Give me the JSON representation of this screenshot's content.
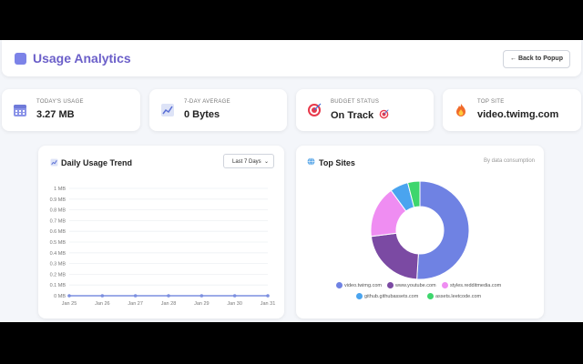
{
  "header": {
    "title": "Usage Analytics",
    "back_label": "← Back to Popup"
  },
  "stats": [
    {
      "label": "TODAY'S USAGE",
      "value": "3.27 MB",
      "icon": "calendar-icon"
    },
    {
      "label": "7-DAY AVERAGE",
      "value": "0 Bytes",
      "icon": "chart-trend-icon"
    },
    {
      "label": "BUDGET STATUS",
      "value": "On Track",
      "icon": "target-icon"
    },
    {
      "label": "TOP SITE",
      "value": "video.twimg.com",
      "icon": "fire-icon"
    }
  ],
  "trend": {
    "title": "Daily Usage Trend",
    "range_selected": "Last 7 Days",
    "chart_data": {
      "type": "line",
      "x": [
        "Jan 25",
        "Jan 26",
        "Jan 27",
        "Jan 28",
        "Jan 29",
        "Jan 30",
        "Jan 31"
      ],
      "series": [
        {
          "values": [
            0,
            0,
            0,
            0,
            0,
            0,
            0
          ]
        }
      ],
      "y_ticks": [
        "0 MB",
        "0.1 MB",
        "0.2 MB",
        "0.3 MB",
        "0.4 MB",
        "0.5 MB",
        "0.6 MB",
        "0.7 MB",
        "0.8 MB",
        "0.9 MB",
        "1 MB"
      ],
      "ylim": [
        0,
        1
      ],
      "grid": true,
      "color": "#7c8fe0"
    }
  },
  "sites": {
    "title": "Top Sites",
    "subtitle": "By data consumption",
    "chart_data": {
      "type": "pie",
      "labels": [
        "video.twimg.com",
        "www.youtube.com",
        "styles.redditmedia.com",
        "github.githubassets.com",
        "assets.leetcode.com"
      ],
      "values": [
        51,
        22,
        17,
        6,
        4
      ],
      "colors": [
        "#6f82e3",
        "#7b4aa3",
        "#ef8df2",
        "#4aa4ef",
        "#3ed66d"
      ],
      "donut": true
    }
  }
}
